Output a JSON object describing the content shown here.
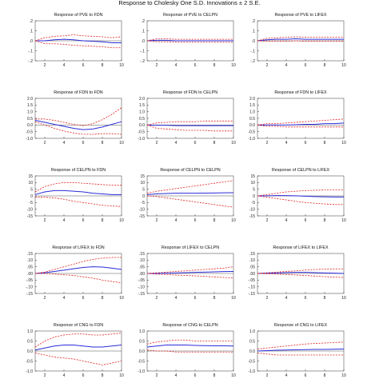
{
  "figure_title": "Response to Cholesky One S.D. Innovations ± 2 S.E.",
  "colors": {
    "response": "#2b2bd9",
    "band": "#e02020",
    "zero": "#555555",
    "axis": "#333333"
  },
  "chart_data": [
    {
      "type": "line",
      "title": "Response of PVE to FDN",
      "x": [
        1,
        2,
        3,
        4,
        5,
        6,
        7,
        8,
        9,
        10
      ],
      "ylim": [
        -0.2,
        0.2
      ],
      "yticks": [
        "-.2",
        "-.1",
        ".0",
        ".1",
        ".2"
      ],
      "xticks": [
        2,
        4,
        6,
        8,
        10
      ],
      "series": [
        {
          "role": "response",
          "values": [
            0.0,
            0.0,
            0.01,
            0.015,
            0.01,
            0.0,
            -0.005,
            -0.01,
            -0.02,
            -0.02
          ]
        },
        {
          "role": "upper",
          "values": [
            0.0,
            0.03,
            0.045,
            0.05,
            0.06,
            0.05,
            0.045,
            0.04,
            0.03,
            0.04
          ]
        },
        {
          "role": "lower",
          "values": [
            0.0,
            -0.03,
            -0.03,
            -0.035,
            -0.045,
            -0.05,
            -0.055,
            -0.06,
            -0.07,
            -0.07
          ]
        }
      ]
    },
    {
      "type": "line",
      "title": "Response of PVE to CELPN",
      "x": [
        1,
        2,
        3,
        4,
        5,
        6,
        7,
        8,
        9,
        10
      ],
      "ylim": [
        -0.2,
        0.2
      ],
      "yticks": [
        "-.2",
        "-.1",
        ".0",
        ".1",
        ".2"
      ],
      "xticks": [
        2,
        4,
        6,
        8,
        10
      ],
      "series": [
        {
          "role": "response",
          "values": [
            0.0,
            0.005,
            0.005,
            0.0,
            0.0,
            0.0,
            0.0,
            0.0,
            0.0,
            0.0
          ]
        },
        {
          "role": "upper",
          "values": [
            0.0,
            0.02,
            0.02,
            0.015,
            0.015,
            0.015,
            0.015,
            0.015,
            0.015,
            0.015
          ]
        },
        {
          "role": "lower",
          "values": [
            0.0,
            -0.01,
            -0.01,
            -0.015,
            -0.015,
            -0.015,
            -0.015,
            -0.015,
            -0.015,
            -0.015
          ]
        }
      ]
    },
    {
      "type": "line",
      "title": "Response of PVE to LIFEX",
      "x": [
        1,
        2,
        3,
        4,
        5,
        6,
        7,
        8,
        9,
        10
      ],
      "ylim": [
        -0.2,
        0.2
      ],
      "yticks": [
        "-.2",
        "-.1",
        ".0",
        ".1",
        ".2"
      ],
      "xticks": [
        2,
        4,
        6,
        8,
        10
      ],
      "series": [
        {
          "role": "response",
          "values": [
            0.0,
            0.01,
            0.015,
            0.015,
            0.02,
            0.015,
            0.015,
            0.015,
            0.015,
            0.015
          ]
        },
        {
          "role": "upper",
          "values": [
            0.0,
            0.025,
            0.03,
            0.035,
            0.04,
            0.035,
            0.035,
            0.035,
            0.035,
            0.035
          ]
        },
        {
          "role": "lower",
          "values": [
            0.0,
            -0.005,
            -0.005,
            -0.005,
            0.0,
            -0.005,
            -0.005,
            -0.005,
            -0.005,
            -0.005
          ]
        }
      ]
    },
    {
      "type": "line",
      "title": "Response of FDN to FDN",
      "x": [
        1,
        2,
        3,
        4,
        5,
        6,
        7,
        8,
        9,
        10
      ],
      "ylim": [
        -1.0,
        2.0
      ],
      "yticks": [
        "-1.0",
        "-0.5",
        "0.0",
        "0.5",
        "1.0",
        "1.5",
        "2.0"
      ],
      "xticks": [
        2,
        4,
        6,
        8,
        10
      ],
      "series": [
        {
          "role": "response",
          "values": [
            0.35,
            0.2,
            0.05,
            -0.1,
            -0.25,
            -0.35,
            -0.3,
            -0.15,
            0.05,
            0.25
          ]
        },
        {
          "role": "upper",
          "values": [
            0.45,
            0.45,
            0.35,
            0.2,
            0.05,
            -0.05,
            0.1,
            0.4,
            0.8,
            1.3
          ]
        },
        {
          "role": "lower",
          "values": [
            0.25,
            0.0,
            -0.25,
            -0.45,
            -0.6,
            -0.7,
            -0.7,
            -0.65,
            -0.65,
            -0.7
          ]
        }
      ]
    },
    {
      "type": "line",
      "title": "Response of FDN to CELPN",
      "x": [
        1,
        2,
        3,
        4,
        5,
        6,
        7,
        8,
        9,
        10
      ],
      "ylim": [
        -1.0,
        2.0
      ],
      "yticks": [
        "-1.0",
        "-0.5",
        "0.0",
        "0.5",
        "1.0",
        "1.5",
        "2.0"
      ],
      "xticks": [
        2,
        4,
        6,
        8,
        10
      ],
      "series": [
        {
          "role": "response",
          "values": [
            0.0,
            -0.02,
            -0.02,
            -0.05,
            -0.05,
            -0.05,
            -0.05,
            -0.05,
            -0.05,
            -0.05
          ]
        },
        {
          "role": "upper",
          "values": [
            0.0,
            0.15,
            0.2,
            0.25,
            0.25,
            0.25,
            0.3,
            0.3,
            0.3,
            0.3
          ]
        },
        {
          "role": "lower",
          "values": [
            0.0,
            -0.25,
            -0.3,
            -0.35,
            -0.4,
            -0.4,
            -0.4,
            -0.45,
            -0.45,
            -0.45
          ]
        }
      ]
    },
    {
      "type": "line",
      "title": "Response of FDN to LIFEX",
      "x": [
        1,
        2,
        3,
        4,
        5,
        6,
        7,
        8,
        9,
        10
      ],
      "ylim": [
        -1.0,
        2.0
      ],
      "yticks": [
        "-1.0",
        "-0.5",
        "0.0",
        "0.5",
        "1.0",
        "1.5",
        "2.0"
      ],
      "xticks": [
        2,
        4,
        6,
        8,
        10
      ],
      "series": [
        {
          "role": "response",
          "values": [
            0.0,
            0.0,
            0.0,
            0.0,
            0.02,
            0.05,
            0.05,
            0.1,
            0.1,
            0.15
          ]
        },
        {
          "role": "upper",
          "values": [
            0.0,
            0.1,
            0.1,
            0.15,
            0.2,
            0.25,
            0.3,
            0.35,
            0.4,
            0.45
          ]
        },
        {
          "role": "lower",
          "values": [
            0.0,
            -0.1,
            -0.1,
            -0.15,
            -0.15,
            -0.15,
            -0.15,
            -0.15,
            -0.15,
            -0.15
          ]
        }
      ]
    },
    {
      "type": "line",
      "title": "Response of CELPN to FDN",
      "x": [
        1,
        2,
        3,
        4,
        5,
        6,
        7,
        8,
        9,
        10
      ],
      "ylim": [
        -15,
        15
      ],
      "yticks": [
        "-15",
        "-10",
        "-5",
        "0",
        "5",
        "10",
        "15"
      ],
      "xticks": [
        2,
        4,
        6,
        8,
        10
      ],
      "series": [
        {
          "role": "response",
          "values": [
            1,
            3,
            4,
            4,
            3.5,
            3,
            2,
            1.5,
            1,
            1
          ]
        },
        {
          "role": "upper",
          "values": [
            3,
            7,
            9,
            10,
            10,
            9.5,
            9,
            8.5,
            8,
            8
          ]
        },
        {
          "role": "lower",
          "values": [
            -1,
            -1,
            -1.5,
            -2.5,
            -4,
            -5,
            -6,
            -7,
            -7.5,
            -8
          ]
        }
      ]
    },
    {
      "type": "line",
      "title": "Response of CELPN to CELPN",
      "x": [
        1,
        2,
        3,
        4,
        5,
        6,
        7,
        8,
        9,
        10
      ],
      "ylim": [
        -15,
        15
      ],
      "yticks": [
        "-15",
        "-10",
        "-5",
        "0",
        "5",
        "10",
        "15"
      ],
      "xticks": [
        2,
        4,
        6,
        8,
        10
      ],
      "series": [
        {
          "role": "response",
          "values": [
            1,
            1.5,
            1.8,
            2,
            2,
            2,
            2.1,
            2.2,
            2.3,
            2.4
          ]
        },
        {
          "role": "upper",
          "values": [
            2,
            3.5,
            4.5,
            5.5,
            6.5,
            7.5,
            8.5,
            9.5,
            10.5,
            11.5
          ]
        },
        {
          "role": "lower",
          "values": [
            0,
            -0.5,
            -1.5,
            -2.5,
            -3.5,
            -4.5,
            -5.5,
            -6.5,
            -7.5,
            -8.5
          ]
        }
      ]
    },
    {
      "type": "line",
      "title": "Response of CELPN to LIFEX",
      "x": [
        1,
        2,
        3,
        4,
        5,
        6,
        7,
        8,
        9,
        10
      ],
      "ylim": [
        -15,
        15
      ],
      "yticks": [
        "-15",
        "-10",
        "-5",
        "0",
        "5",
        "10",
        "15"
      ],
      "xticks": [
        2,
        4,
        6,
        8,
        10
      ],
      "series": [
        {
          "role": "response",
          "values": [
            0,
            0.1,
            0.2,
            0.2,
            0.1,
            -0.2,
            -0.5,
            -0.7,
            -0.8,
            -0.8
          ]
        },
        {
          "role": "upper",
          "values": [
            0,
            1,
            2,
            3,
            3.5,
            4,
            4.2,
            4.5,
            4.5,
            4.5
          ]
        },
        {
          "role": "lower",
          "values": [
            0,
            -1,
            -2,
            -3,
            -4,
            -5,
            -5.5,
            -6,
            -6.5,
            -6.5
          ]
        }
      ]
    },
    {
      "type": "line",
      "title": "Response of LIFEX to FDN",
      "x": [
        1,
        2,
        3,
        4,
        5,
        6,
        7,
        8,
        9,
        10
      ],
      "ylim": [
        -0.15,
        0.15
      ],
      "yticks": [
        "-.15",
        "-.10",
        "-.05",
        ".00",
        ".05",
        ".10",
        ".15"
      ],
      "xticks": [
        2,
        4,
        6,
        8,
        10
      ],
      "series": [
        {
          "role": "response",
          "values": [
            0.0,
            0.005,
            0.015,
            0.025,
            0.035,
            0.045,
            0.05,
            0.048,
            0.04,
            0.03
          ]
        },
        {
          "role": "upper",
          "values": [
            0.0,
            0.01,
            0.03,
            0.05,
            0.07,
            0.09,
            0.105,
            0.115,
            0.12,
            0.12
          ]
        },
        {
          "role": "lower",
          "values": [
            0.0,
            0.0,
            -0.005,
            -0.01,
            -0.015,
            -0.025,
            -0.035,
            -0.05,
            -0.06,
            -0.07
          ]
        }
      ]
    },
    {
      "type": "line",
      "title": "Response of LIFEX to CELPN",
      "x": [
        1,
        2,
        3,
        4,
        5,
        6,
        7,
        8,
        9,
        10
      ],
      "ylim": [
        -0.15,
        0.15
      ],
      "yticks": [
        "-.15",
        "-.10",
        "-.05",
        ".00",
        ".05",
        ".10",
        ".15"
      ],
      "xticks": [
        2,
        4,
        6,
        8,
        10
      ],
      "series": [
        {
          "role": "response",
          "values": [
            0.0,
            0.0,
            0.002,
            0.004,
            0.006,
            0.008,
            0.01,
            0.012,
            0.014,
            0.015
          ]
        },
        {
          "role": "upper",
          "values": [
            0.0,
            0.005,
            0.01,
            0.015,
            0.02,
            0.025,
            0.03,
            0.035,
            0.04,
            0.05
          ]
        },
        {
          "role": "lower",
          "values": [
            0.0,
            -0.005,
            -0.008,
            -0.012,
            -0.015,
            -0.018,
            -0.022,
            -0.026,
            -0.03,
            -0.035
          ]
        }
      ]
    },
    {
      "type": "line",
      "title": "Response of LIFEX to LIFEX",
      "x": [
        1,
        2,
        3,
        4,
        5,
        6,
        7,
        8,
        9,
        10
      ],
      "ylim": [
        -0.15,
        0.15
      ],
      "yticks": [
        "-.15",
        "-.10",
        "-.05",
        ".00",
        ".05",
        ".10",
        ".15"
      ],
      "xticks": [
        2,
        4,
        6,
        8,
        10
      ],
      "series": [
        {
          "role": "response",
          "values": [
            0.0,
            0.002,
            0.004,
            0.006,
            0.008,
            0.008,
            0.006,
            0.004,
            0.002,
            0.0
          ]
        },
        {
          "role": "upper",
          "values": [
            0.0,
            0.005,
            0.01,
            0.015,
            0.02,
            0.025,
            0.03,
            0.032,
            0.034,
            0.035
          ]
        },
        {
          "role": "lower",
          "values": [
            0.0,
            -0.002,
            -0.005,
            -0.008,
            -0.012,
            -0.015,
            -0.02,
            -0.024,
            -0.028,
            -0.03
          ]
        }
      ]
    },
    {
      "type": "line",
      "title": "Response of CNG to FDN",
      "x": [
        1,
        2,
        3,
        4,
        5,
        6,
        7,
        8,
        9,
        10
      ],
      "ylim": [
        -1.0,
        1.0
      ],
      "yticks": [
        "-1.0",
        "-0.5",
        "0.0",
        "0.5",
        "1.0"
      ],
      "xticks": [
        2,
        4,
        6,
        8,
        10
      ],
      "series": [
        {
          "role": "response",
          "values": [
            0.05,
            0.15,
            0.25,
            0.3,
            0.3,
            0.25,
            0.2,
            0.2,
            0.25,
            0.3
          ]
        },
        {
          "role": "upper",
          "values": [
            0.2,
            0.5,
            0.7,
            0.8,
            0.85,
            0.85,
            0.8,
            0.8,
            0.85,
            0.9
          ]
        },
        {
          "role": "lower",
          "values": [
            -0.1,
            -0.2,
            -0.3,
            -0.35,
            -0.4,
            -0.5,
            -0.6,
            -0.7,
            -0.6,
            -0.5
          ]
        }
      ]
    },
    {
      "type": "line",
      "title": "Response of CNG to CELPN",
      "x": [
        1,
        2,
        3,
        4,
        5,
        6,
        7,
        8,
        9,
        10
      ],
      "ylim": [
        -1.0,
        1.0
      ],
      "yticks": [
        "-1.0",
        "-0.5",
        "0.0",
        "0.5",
        "1.0"
      ],
      "xticks": [
        2,
        4,
        6,
        8,
        10
      ],
      "series": [
        {
          "role": "response",
          "values": [
            0.2,
            0.25,
            0.3,
            0.3,
            0.3,
            0.28,
            0.27,
            0.26,
            0.26,
            0.25
          ]
        },
        {
          "role": "upper",
          "values": [
            0.35,
            0.45,
            0.5,
            0.55,
            0.55,
            0.5,
            0.5,
            0.5,
            0.5,
            0.5
          ]
        },
        {
          "role": "lower",
          "values": [
            0.05,
            0.0,
            0.0,
            -0.05,
            -0.05,
            -0.05,
            -0.05,
            -0.05,
            -0.05,
            -0.05
          ]
        }
      ]
    },
    {
      "type": "line",
      "title": "Response of CNG to LIFEX",
      "x": [
        1,
        2,
        3,
        4,
        5,
        6,
        7,
        8,
        9,
        10
      ],
      "ylim": [
        -1.0,
        1.0
      ],
      "yticks": [
        "-1.0",
        "-0.5",
        "0.0",
        "0.5",
        "1.0"
      ],
      "xticks": [
        2,
        4,
        6,
        8,
        10
      ],
      "series": [
        {
          "role": "response",
          "values": [
            0.0,
            0.02,
            0.04,
            0.05,
            0.06,
            0.07,
            0.08,
            0.08,
            0.09,
            0.1
          ]
        },
        {
          "role": "upper",
          "values": [
            0.1,
            0.15,
            0.2,
            0.25,
            0.3,
            0.35,
            0.38,
            0.4,
            0.42,
            0.45
          ]
        },
        {
          "role": "lower",
          "values": [
            -0.1,
            -0.15,
            -0.2,
            -0.2,
            -0.2,
            -0.2,
            -0.2,
            -0.2,
            -0.2,
            -0.2
          ]
        }
      ]
    }
  ]
}
